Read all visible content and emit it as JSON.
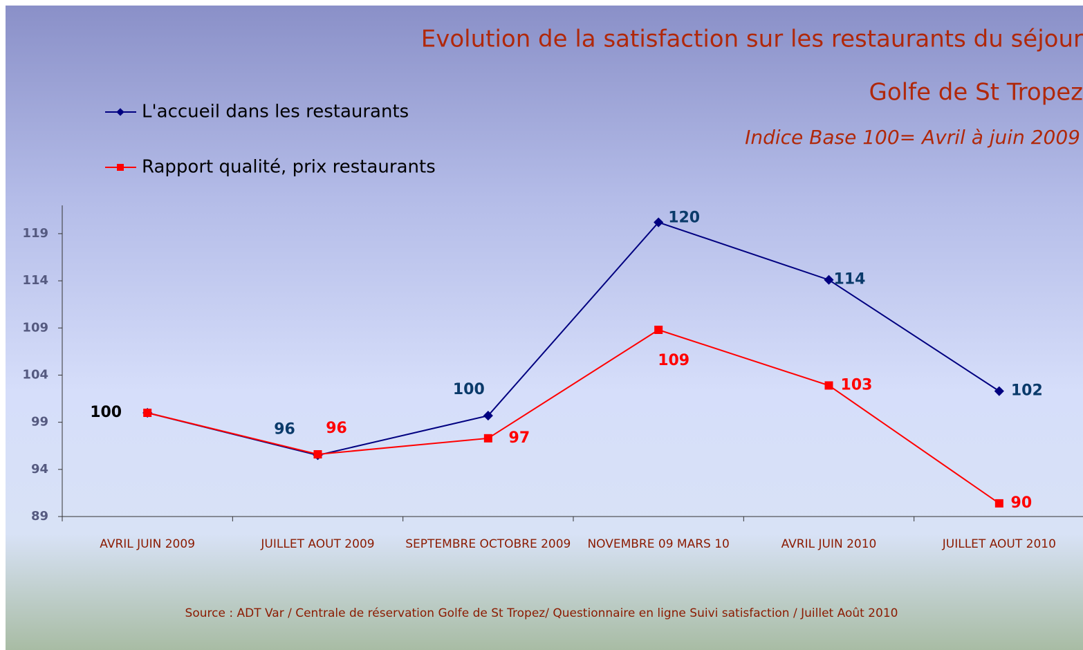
{
  "chart_data": {
    "type": "line",
    "title": "Evolution de la satisfaction sur les restaurants du séjour",
    "subtitle": "Golfe de St Tropez",
    "note": "Indice Base 100= Avril à juin 2009",
    "source": "Source : ADT Var / Centrale de réservation  Golfe de St Tropez/ Questionnaire en ligne Suivi satisfaction / Juillet Août 2010",
    "categories": [
      "AVRIL JUIN 2009",
      "JUILLET AOUT 2009",
      "SEPTEMBRE OCTOBRE 2009",
      "NOVEMBRE 09 MARS 10",
      "AVRIL JUIN 2010",
      "JUILLET AOUT 2010"
    ],
    "series": [
      {
        "name": "L'accueil dans les restaurants",
        "color": "#000080",
        "values": [
          100,
          95.5,
          99.7,
          120.2,
          114.1,
          102.3
        ],
        "value_labels": [
          "100",
          "96",
          "100",
          "120",
          "114",
          "102"
        ]
      },
      {
        "name": "Rapport qualité, prix restaurants",
        "color": "#ff0000",
        "values": [
          100,
          95.6,
          97.3,
          108.8,
          102.9,
          90.4
        ],
        "value_labels": [
          null,
          "96",
          "97",
          "109",
          "103",
          "90"
        ]
      }
    ],
    "ylim": [
      89,
      122
    ],
    "yticks": [
      89,
      94,
      99,
      104,
      109,
      114,
      119
    ],
    "grid": false,
    "legend": "top-left"
  }
}
